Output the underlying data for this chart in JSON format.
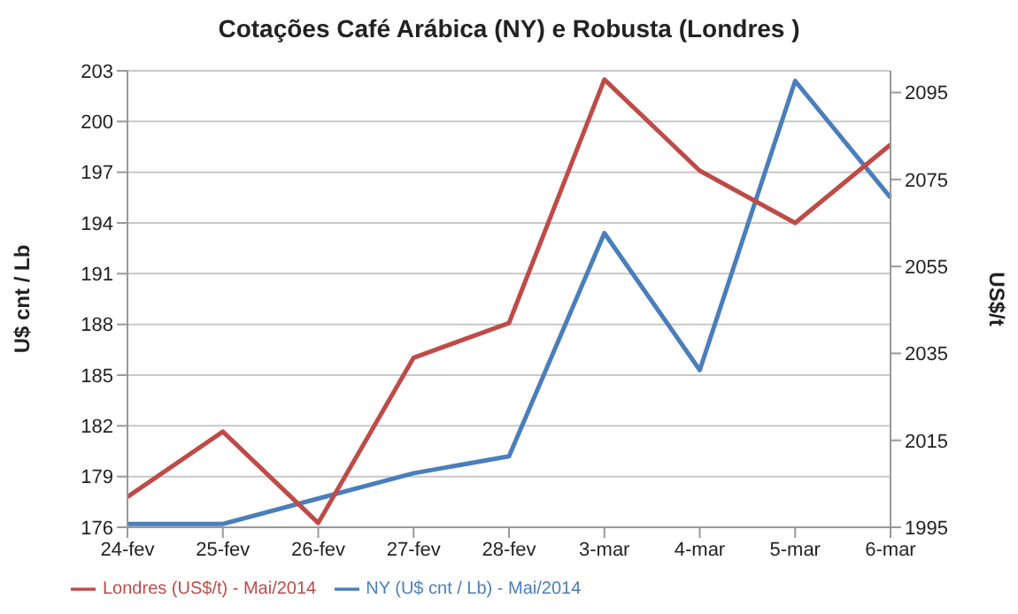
{
  "chart_data": {
    "type": "line",
    "title": "Cotações Café Arábica (NY) e Robusta (Londres )",
    "categories": [
      "24-fev",
      "25-fev",
      "26-fev",
      "27-fev",
      "28-fev",
      "3-mar",
      "4-mar",
      "5-mar",
      "6-mar"
    ],
    "series": [
      {
        "name": "NY (U$ cnt / Lb) - Mai/2014",
        "color": "#4a7ebb",
        "values": [
          176.2,
          176.2,
          177.7,
          179.2,
          180.2,
          193.4,
          185.3,
          202.4,
          195.5
        ]
      },
      {
        "name": "Londres (US$/t) - Mai/2014",
        "color": "#be4b48",
        "axis": "y2",
        "values": [
          2002,
          2017,
          1996,
          2034,
          2042,
          2098,
          2077,
          2065,
          2083
        ]
      }
    ],
    "ylabel": "U$ cnt / Lb",
    "y2label": "US$/t",
    "ylim": [
      176,
      203
    ],
    "yticks": [
      176,
      179,
      182,
      185,
      188,
      191,
      194,
      197,
      200,
      203
    ],
    "y2lim": [
      1995,
      2100
    ],
    "y2ticks": [
      1995,
      2015,
      2035,
      2055,
      2075,
      2095
    ],
    "grid": "y",
    "legend": "bottom",
    "marker": "none",
    "line_style": "solid"
  }
}
